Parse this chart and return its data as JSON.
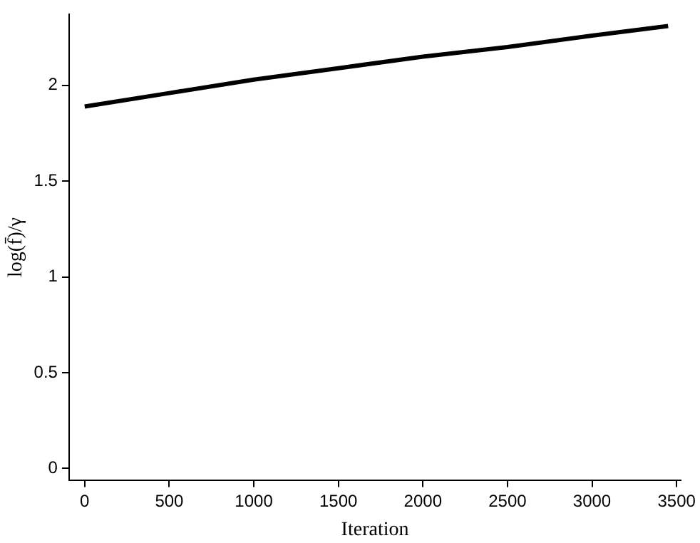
{
  "chart_data": {
    "type": "line",
    "xlabel": "Iteration",
    "ylabel": "log(f̄)/γ",
    "x": [
      0,
      500,
      1000,
      1500,
      2000,
      2500,
      3000,
      3450
    ],
    "series": [
      {
        "color": "#000000",
        "values": [
          1.89,
          1.96,
          2.03,
          2.09,
          2.15,
          2.2,
          2.26,
          2.31
        ]
      }
    ],
    "xlim": [
      -92,
      3525
    ],
    "xticks": [
      0,
      500,
      1000,
      1500,
      2000,
      2500,
      3000,
      3500
    ],
    "ylim": [
      -0.06,
      2.37
    ],
    "yticks": [
      0,
      0.5,
      1,
      1.5,
      2
    ],
    "grid": false,
    "legend": false,
    "marker": "none",
    "line_style": "solid"
  }
}
